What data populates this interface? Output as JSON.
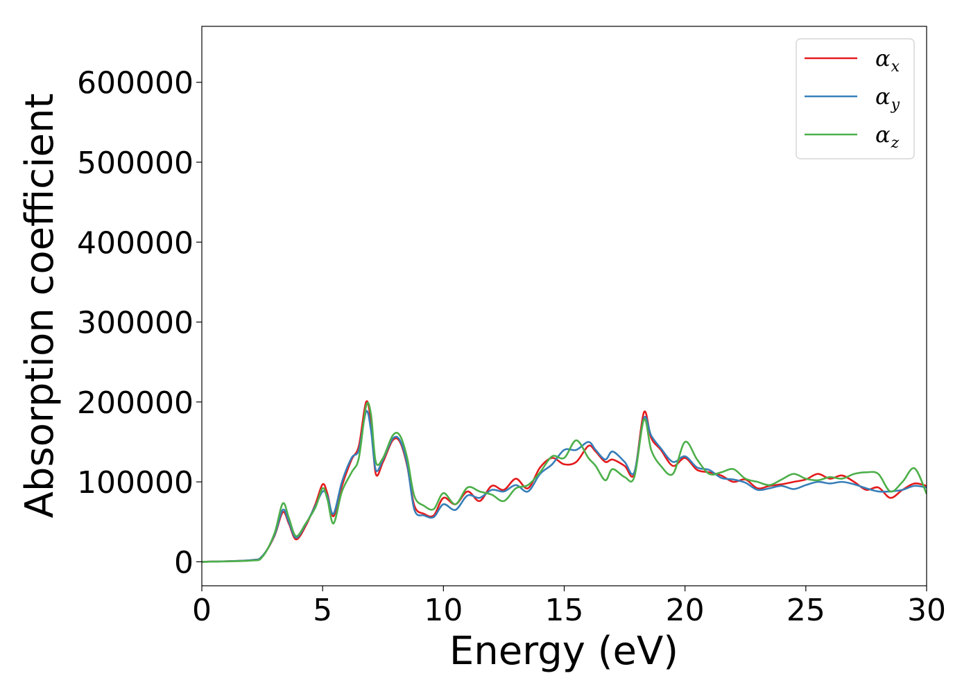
{
  "chart_data": {
    "type": "line",
    "title": "",
    "xlabel": "Energy (eV)",
    "ylabel": "Absorption coefficient",
    "xlim": [
      0,
      30
    ],
    "ylim": [
      -30000,
      670000
    ],
    "xticks": [
      0,
      5,
      10,
      15,
      20,
      25,
      30
    ],
    "yticks": [
      0,
      100000,
      200000,
      300000,
      400000,
      500000,
      600000
    ],
    "grid": false,
    "legend_position": "top-right",
    "series": [
      {
        "name": "αx",
        "symbol": "α",
        "subscript": "x",
        "color": "#e41a1c",
        "x": [
          0,
          2.0,
          2.5,
          3.0,
          3.35,
          3.6,
          3.9,
          4.3,
          4.7,
          5.0,
          5.2,
          5.45,
          5.8,
          6.2,
          6.5,
          6.8,
          7.0,
          7.2,
          7.5,
          7.9,
          8.2,
          8.5,
          8.8,
          9.2,
          9.6,
          10.0,
          10.5,
          11.0,
          11.5,
          12.0,
          12.5,
          13.0,
          13.5,
          14.0,
          14.5,
          15.0,
          15.5,
          16.0,
          16.3,
          16.7,
          17.0,
          17.5,
          17.9,
          18.3,
          18.6,
          19.0,
          19.5,
          20.0,
          20.5,
          21.0,
          21.5,
          22.0,
          22.5,
          23.0,
          23.5,
          24.0,
          24.5,
          25.0,
          25.5,
          26.0,
          26.5,
          27.0,
          27.5,
          28.0,
          28.5,
          29.0,
          29.5,
          30.0
        ],
        "values": [
          0,
          2000,
          7000,
          32000,
          62000,
          48000,
          28000,
          45000,
          72000,
          97000,
          85000,
          57000,
          95000,
          128000,
          145000,
          200000,
          175000,
          110000,
          125000,
          152000,
          150000,
          120000,
          70000,
          60000,
          58000,
          80000,
          72000,
          88000,
          76000,
          95000,
          90000,
          104000,
          92000,
          118000,
          130000,
          122000,
          125000,
          145000,
          138000,
          125000,
          128000,
          120000,
          110000,
          187000,
          155000,
          140000,
          120000,
          130000,
          115000,
          112000,
          108000,
          100000,
          103000,
          92000,
          95000,
          97000,
          100000,
          103000,
          110000,
          104000,
          108000,
          100000,
          90000,
          93000,
          80000,
          90000,
          98000,
          95000
        ]
      },
      {
        "name": "αy",
        "symbol": "α",
        "subscript": "y",
        "color": "#377eb8",
        "x": [
          0,
          2.0,
          2.5,
          3.0,
          3.35,
          3.6,
          3.9,
          4.3,
          4.7,
          5.0,
          5.2,
          5.45,
          5.8,
          6.2,
          6.5,
          6.8,
          7.0,
          7.2,
          7.5,
          7.9,
          8.2,
          8.5,
          8.8,
          9.2,
          9.6,
          10.0,
          10.5,
          11.0,
          11.5,
          12.0,
          12.5,
          13.0,
          13.5,
          14.0,
          14.5,
          15.0,
          15.5,
          16.0,
          16.3,
          16.7,
          17.0,
          17.5,
          17.9,
          18.3,
          18.6,
          19.0,
          19.5,
          20.0,
          20.5,
          21.0,
          21.5,
          22.0,
          22.5,
          23.0,
          23.5,
          24.0,
          24.5,
          25.0,
          25.5,
          26.0,
          26.5,
          27.0,
          27.5,
          28.0,
          28.5,
          29.0,
          29.5,
          30.0
        ],
        "values": [
          0,
          2000,
          7000,
          33000,
          65000,
          50000,
          30000,
          47000,
          70000,
          88000,
          82000,
          60000,
          100000,
          130000,
          140000,
          188000,
          165000,
          115000,
          128000,
          154000,
          152000,
          122000,
          65000,
          58000,
          56000,
          72000,
          65000,
          83000,
          80000,
          90000,
          88000,
          96000,
          88000,
          110000,
          122000,
          140000,
          140000,
          150000,
          140000,
          128000,
          138000,
          125000,
          112000,
          180000,
          158000,
          142000,
          125000,
          132000,
          118000,
          115000,
          105000,
          103000,
          99000,
          90000,
          92000,
          95000,
          91000,
          96000,
          100000,
          98000,
          100000,
          97000,
          92000,
          88000,
          88000,
          90000,
          95000,
          93000
        ]
      },
      {
        "name": "αz",
        "symbol": "α",
        "subscript": "z",
        "color": "#4daf4a",
        "x": [
          0,
          2.0,
          2.5,
          3.0,
          3.35,
          3.6,
          3.9,
          4.3,
          4.7,
          5.0,
          5.2,
          5.45,
          5.8,
          6.2,
          6.5,
          6.8,
          7.0,
          7.2,
          7.5,
          7.9,
          8.2,
          8.5,
          8.8,
          9.2,
          9.6,
          10.0,
          10.5,
          11.0,
          11.5,
          12.0,
          12.5,
          13.0,
          13.5,
          14.0,
          14.5,
          15.0,
          15.5,
          16.0,
          16.3,
          16.7,
          17.0,
          17.5,
          17.9,
          18.3,
          18.6,
          19.0,
          19.5,
          20.0,
          20.5,
          21.0,
          21.5,
          22.0,
          22.5,
          23.0,
          23.5,
          24.0,
          24.5,
          25.0,
          25.5,
          26.0,
          26.5,
          27.0,
          27.5,
          28.0,
          28.5,
          29.0,
          29.5,
          30.0
        ],
        "values": [
          0,
          1500,
          6000,
          35000,
          73000,
          55000,
          32000,
          48000,
          68000,
          92000,
          78000,
          48000,
          88000,
          112000,
          130000,
          195000,
          185000,
          125000,
          130000,
          158000,
          158000,
          130000,
          82000,
          70000,
          66000,
          86000,
          72000,
          93000,
          88000,
          84000,
          76000,
          92000,
          96000,
          112000,
          132000,
          130000,
          152000,
          130000,
          120000,
          102000,
          116000,
          106000,
          106000,
          178000,
          140000,
          120000,
          110000,
          150000,
          128000,
          110000,
          112000,
          116000,
          104000,
          100000,
          96000,
          103000,
          110000,
          104000,
          102000,
          106000,
          104000,
          110000,
          112000,
          110000,
          88000,
          100000,
          117000,
          85000
        ]
      }
    ]
  }
}
